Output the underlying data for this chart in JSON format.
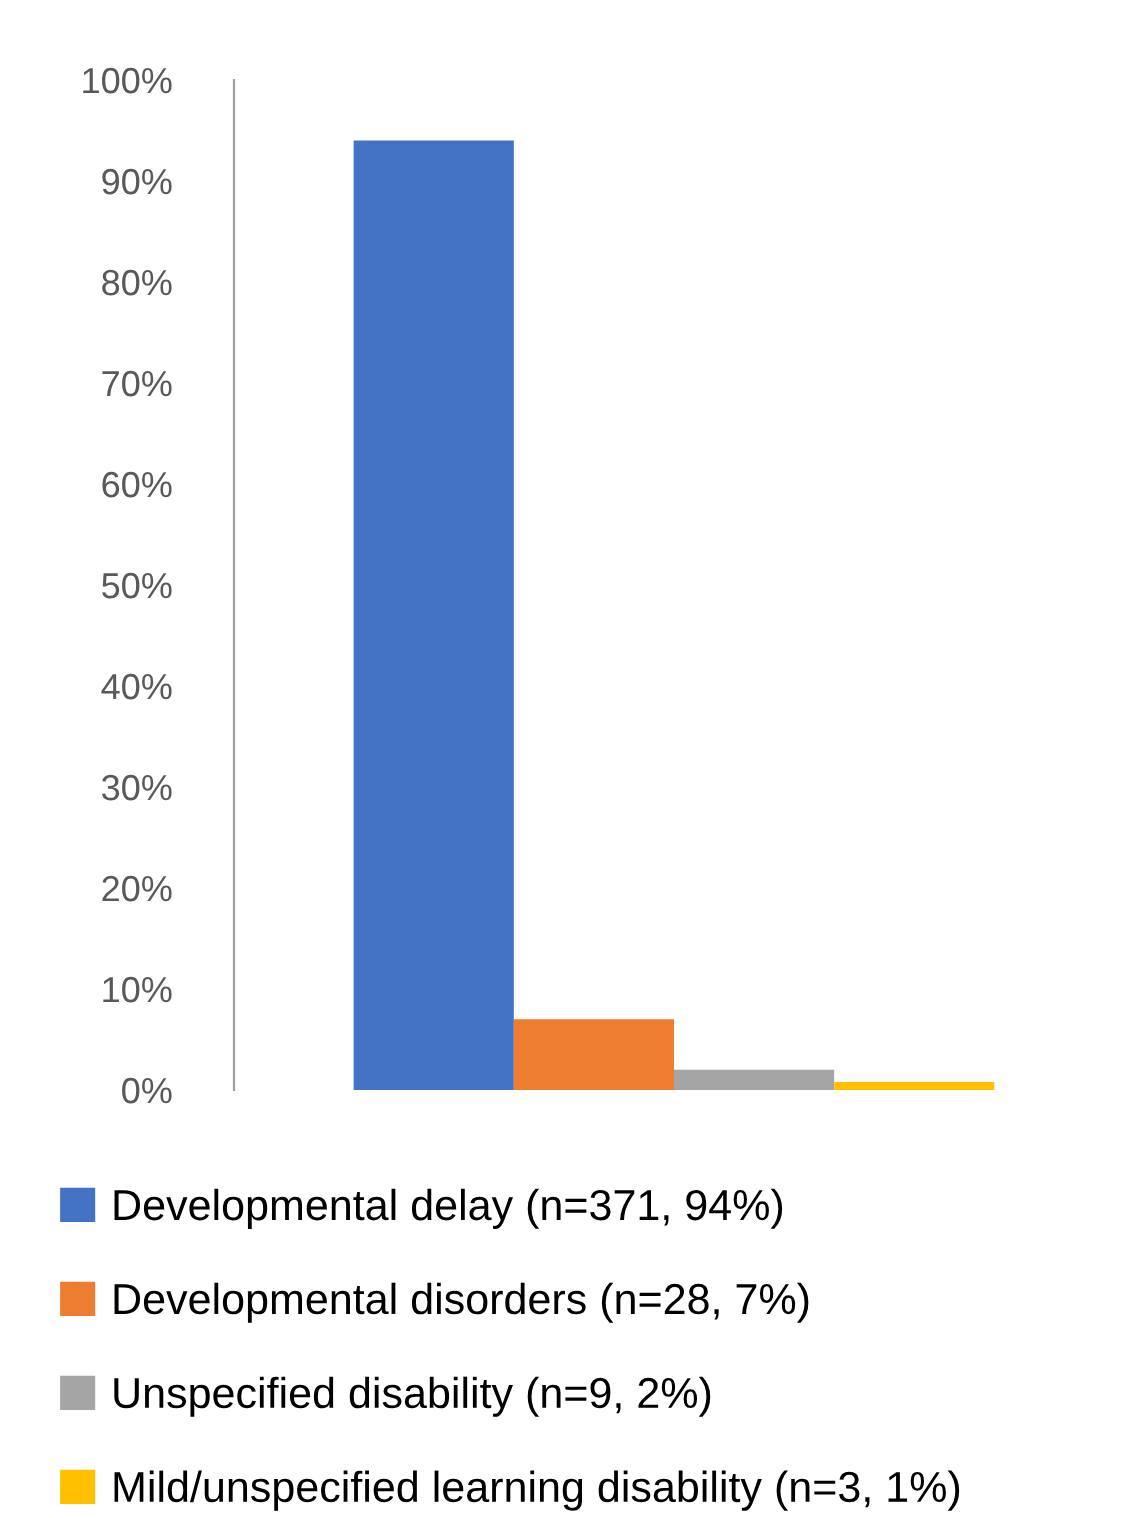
{
  "chart_data": {
    "type": "bar",
    "categories": [
      null
    ],
    "series": [
      {
        "name": "Developmental delay (n=371, 94%)",
        "color": "#4472c4",
        "values": [
          94
        ]
      },
      {
        "name": "Developmental disorders (n=28, 7%)",
        "color": "#ed7d31",
        "values": [
          7
        ]
      },
      {
        "name": "Unspecified disability (n=9, 2%)",
        "color": "#a5a5a5",
        "values": [
          2
        ]
      },
      {
        "name": "Mild/unspecified learning disability (n=3, 1%)",
        "color": "#ffc000",
        "values": [
          0.8
        ]
      }
    ],
    "ylim": [
      0,
      100
    ],
    "yticks": [
      {
        "value": 0,
        "label": "0%"
      },
      {
        "value": 10,
        "label": "10%"
      },
      {
        "value": 20,
        "label": "20%"
      },
      {
        "value": 30,
        "label": "30%"
      },
      {
        "value": 40,
        "label": "40%"
      },
      {
        "value": 50,
        "label": "50%"
      },
      {
        "value": 60,
        "label": "60%"
      },
      {
        "value": 70,
        "label": "70%"
      },
      {
        "value": 80,
        "label": "80%"
      },
      {
        "value": 90,
        "label": "90%"
      },
      {
        "value": 100,
        "label": "100%"
      }
    ],
    "grid": false,
    "legend": "bottom"
  }
}
